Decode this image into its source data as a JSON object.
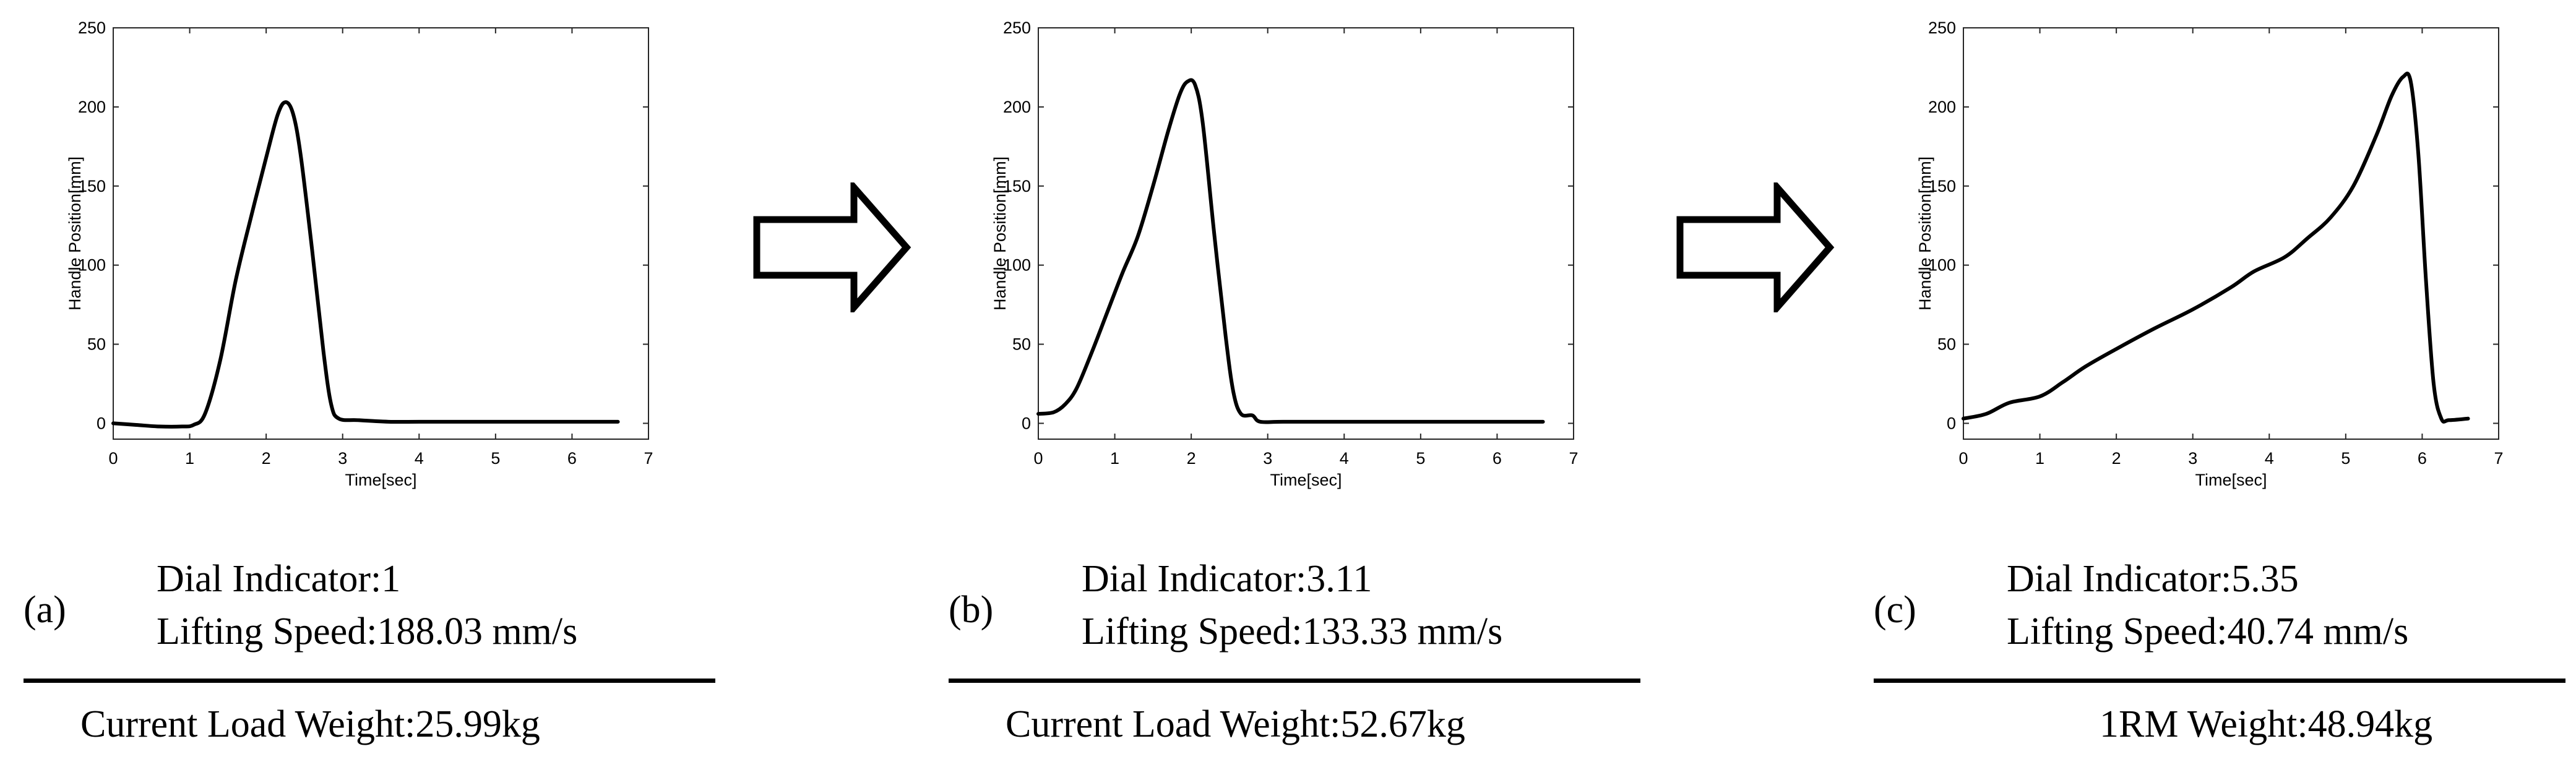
{
  "chart_data": [
    {
      "type": "line",
      "xlabel": "Time[sec]",
      "ylabel": "Handle Position[mm]",
      "xlim": [
        0,
        7
      ],
      "ylim": [
        -10,
        250
      ],
      "xticks": [
        0,
        1,
        2,
        3,
        4,
        5,
        6,
        7
      ],
      "yticks": [
        0,
        50,
        100,
        150,
        200,
        250
      ],
      "series": [
        {
          "name": "(a)",
          "x": [
            0,
            0.3,
            0.6,
            0.9,
            1.05,
            1.2,
            1.4,
            1.6,
            1.8,
            2.0,
            2.15,
            2.25,
            2.35,
            2.45,
            2.6,
            2.75,
            2.85,
            2.95,
            3.2,
            3.6,
            4.0,
            4.5,
            5.0,
            5.5,
            6.0,
            6.6
          ],
          "y": [
            0,
            -1,
            -2,
            -2,
            -1,
            6,
            40,
            90,
            130,
            168,
            195,
            203,
            196,
            170,
            110,
            45,
            12,
            3,
            2,
            1,
            1,
            1,
            1,
            1,
            1,
            1
          ]
        },
        {
          "name": "(b)",
          "x": [
            0,
            0.2,
            0.35,
            0.5,
            0.7,
            0.9,
            1.1,
            1.3,
            1.5,
            1.7,
            1.85,
            1.95,
            2.05,
            2.15,
            2.3,
            2.45,
            2.55,
            2.65,
            2.8,
            2.9,
            3.2,
            4.0,
            5.0,
            6.0,
            6.6
          ],
          "y": [
            6,
            7,
            12,
            22,
            45,
            70,
            95,
            118,
            150,
            185,
            208,
            216,
            214,
            190,
            120,
            55,
            20,
            6,
            5,
            1,
            1,
            1,
            1,
            1,
            1
          ]
        },
        {
          "name": "(c)",
          "x": [
            0,
            0.3,
            0.6,
            1.0,
            1.3,
            1.6,
            2.0,
            2.5,
            3.0,
            3.5,
            3.8,
            4.2,
            4.5,
            4.8,
            5.1,
            5.4,
            5.6,
            5.75,
            5.85,
            5.95,
            6.05,
            6.15,
            6.25,
            6.35,
            6.6
          ],
          "y": [
            3,
            6,
            13,
            17,
            26,
            36,
            47,
            60,
            72,
            86,
            96,
            105,
            117,
            130,
            150,
            182,
            207,
            219,
            216,
            170,
            90,
            25,
            3,
            2,
            3
          ]
        }
      ]
    }
  ],
  "panels": [
    {
      "letter": "(a)",
      "dial": "Dial Indicator:1",
      "speed": "Lifting Speed:188.03 mm/s",
      "weight": "Current Load Weight:25.99kg"
    },
    {
      "letter": "(b)",
      "dial": "Dial Indicator:3.11",
      "speed": "Lifting Speed:133.33 mm/s",
      "weight": "Current Load Weight:52.67kg"
    },
    {
      "letter": "(c)",
      "dial": "Dial Indicator:5.35",
      "speed": "Lifting Speed:40.74 mm/s",
      "weight": "1RM Weight:48.94kg"
    }
  ]
}
